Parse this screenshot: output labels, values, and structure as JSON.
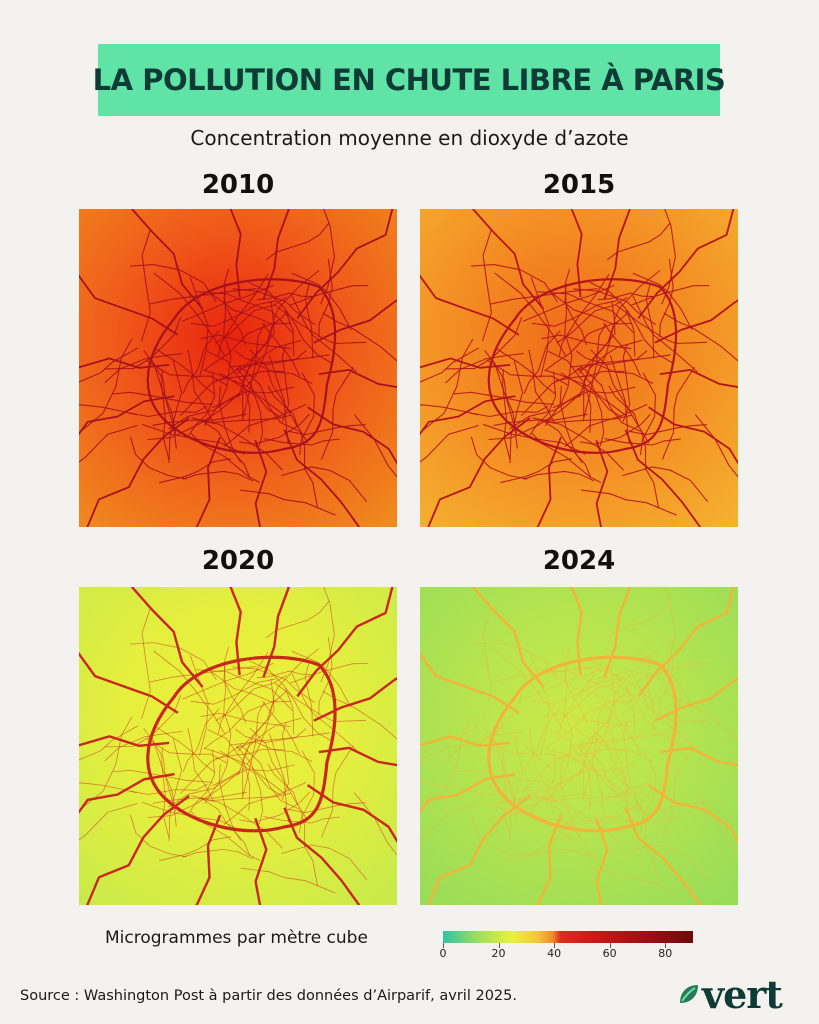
{
  "title": "LA POLLUTION EN CHUTE LIBRE À PARIS",
  "subtitle": "Concentration moyenne en dioxyde d’azote",
  "maps": [
    {
      "year": "2010",
      "bg_center": "#e8220c",
      "bg_mid": "#f0561a",
      "bg_edge": "#f08a1e",
      "road": "#a8101c"
    },
    {
      "year": "2015",
      "bg_center": "#f06a1a",
      "bg_mid": "#f38a22",
      "bg_edge": "#f5b030",
      "road": "#b5141c"
    },
    {
      "year": "2020",
      "bg_center": "#ecef3a",
      "bg_mid": "#e6ef3e",
      "bg_edge": "#c9ea4a",
      "road": "#c8281c"
    },
    {
      "year": "2024",
      "bg_center": "#cbea48",
      "bg_mid": "#b6e450",
      "bg_edge": "#98dc58",
      "road": "#f3b43a"
    }
  ],
  "legend": {
    "label": "Microgrammes par mètre cube",
    "ticks": [
      "0",
      "20",
      "40",
      "60",
      "80"
    ],
    "range": [
      0,
      90
    ]
  },
  "source": "Source : Washington Post à partir des données d’Airparif, avril 2025.",
  "logo": "vert",
  "colors": {
    "title_bg": "#5fe3a6",
    "title_text": "#0f3b37",
    "page_bg": "#f3f2ee"
  }
}
